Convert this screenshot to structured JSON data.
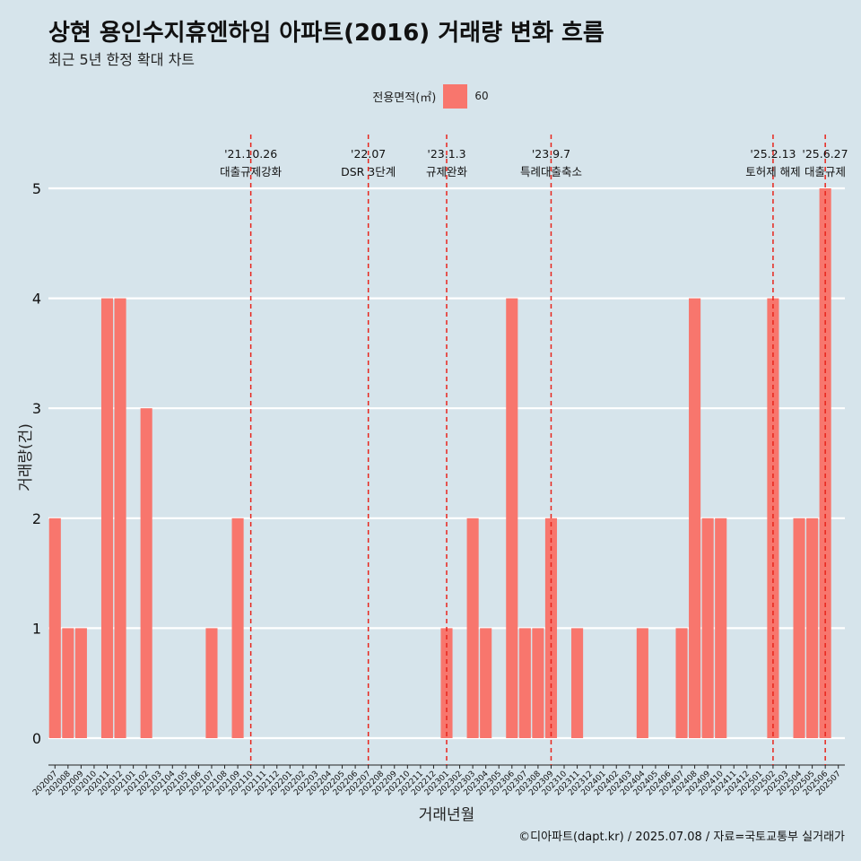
{
  "title": "상현 용인수지휴엔하임 아파트(2016) 거래량 변화 흐름",
  "subtitle": "최근 5년 한정 확대 차트",
  "caption": "©디아파트(dapt.kr) / 2025.07.08 / 자료=국토교통부 실거래가",
  "colors": {
    "background": "#d6e4eb",
    "bar": "#f8766d",
    "vline": "#e8251c",
    "grid": "#ffffff"
  },
  "chart_data": {
    "type": "bar",
    "xlabel": "거래년월",
    "ylabel": "거래량(건)",
    "ylim": [
      0,
      5
    ],
    "yticks": [
      0,
      1,
      2,
      3,
      4,
      5
    ],
    "grid": true,
    "legend": {
      "title": "전용면적(㎡)",
      "position": "top",
      "items": [
        "60"
      ]
    },
    "categories": [
      "202007",
      "202008",
      "202009",
      "202010",
      "202011",
      "202012",
      "202101",
      "202102",
      "202103",
      "202104",
      "202105",
      "202106",
      "202107",
      "202108",
      "202109",
      "202110",
      "202111",
      "202112",
      "202201",
      "202202",
      "202203",
      "202204",
      "202205",
      "202206",
      "202207",
      "202208",
      "202209",
      "202210",
      "202211",
      "202212",
      "202301",
      "202302",
      "202303",
      "202304",
      "202305",
      "202306",
      "202307",
      "202308",
      "202309",
      "202310",
      "202311",
      "202312",
      "202401",
      "202402",
      "202403",
      "202404",
      "202405",
      "202406",
      "202407",
      "202408",
      "202409",
      "202410",
      "202411",
      "202412",
      "202501",
      "202502",
      "202503",
      "202504",
      "202505",
      "202506",
      "202507"
    ],
    "series": [
      {
        "name": "60",
        "values": [
          2,
          1,
          1,
          0,
          4,
          4,
          0,
          3,
          0,
          0,
          0,
          0,
          1,
          0,
          2,
          0,
          0,
          0,
          0,
          0,
          0,
          0,
          0,
          0,
          0,
          0,
          0,
          0,
          0,
          0,
          1,
          0,
          2,
          1,
          0,
          4,
          1,
          1,
          2,
          0,
          1,
          0,
          0,
          0,
          0,
          1,
          0,
          0,
          1,
          4,
          2,
          2,
          0,
          0,
          0,
          4,
          0,
          2,
          2,
          5,
          0
        ]
      }
    ],
    "annotations": [
      {
        "x": "202110",
        "date": "'21.10.26",
        "label": "대출규제강화"
      },
      {
        "x": "202207",
        "date": "'22.07",
        "label": "DSR 3단계"
      },
      {
        "x": "202301",
        "date": "'23.1.3",
        "label": "규제완화"
      },
      {
        "x": "202309",
        "date": "'23.9.7",
        "label": "특례대출축소"
      },
      {
        "x": "202502",
        "date": "'25.2.13",
        "label": "토허제 해제"
      },
      {
        "x": "202506",
        "date": "'25.6.27",
        "label": "대출규제"
      }
    ]
  }
}
